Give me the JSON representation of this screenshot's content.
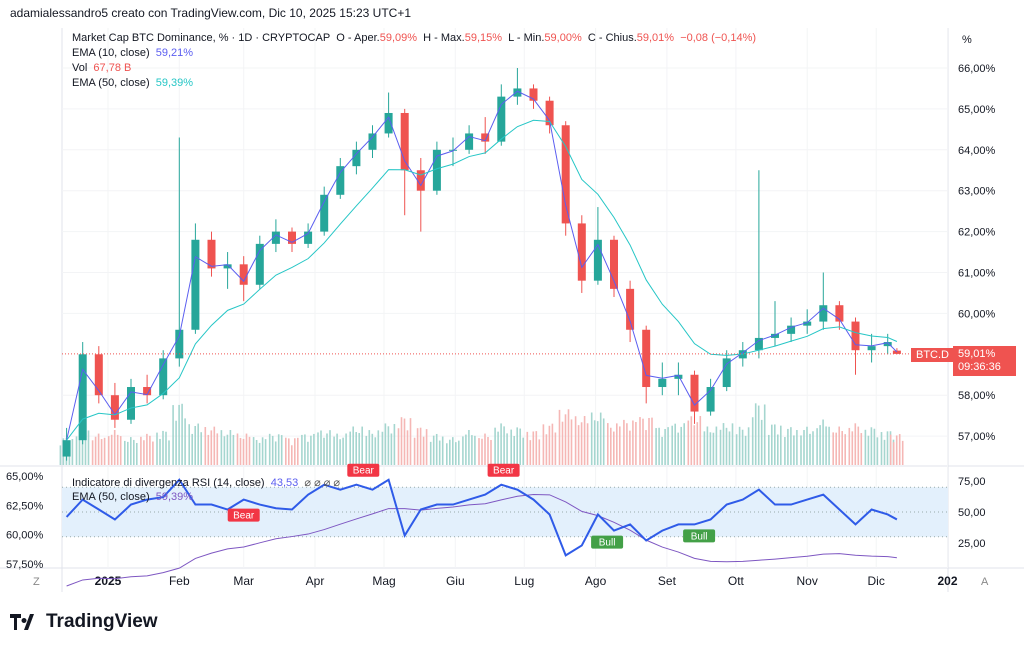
{
  "header": {
    "credit": "adamialessandro5 creato con TradingView.com, Dic 10, 2025 15:23 UTC+1"
  },
  "legend": {
    "symbol": "Market Cap BTC Dominance, % · 1D · CRYPTOCAP",
    "o_label": "O - Aper.",
    "o": "59,09%",
    "h_label": "H - Max.",
    "h": "59,15%",
    "l_label": "L - Min.",
    "l": "59,00%",
    "c_label": "C - Chius.",
    "c": "59,01%",
    "chg": "−0,08 (−0,14%)",
    "ema10_label": "EMA (10, close)",
    "ema10": "59,21%",
    "vol_label": "Vol",
    "vol": "67,78 B",
    "ema50_label": "EMA (50, close)",
    "ema50": "59,39%",
    "rsi_label": "Indicatore di divergenza RSI (14, close)",
    "rsi": "43,53",
    "rsi_icons": "⌀ ⌀ ⌀ ⌀",
    "rsi_ema_label": "EMA (50, close)",
    "rsi_ema": "59,39%"
  },
  "price_tag": {
    "symbol": "BTC.D",
    "price": "59,01%",
    "countdown": "09:36:36"
  },
  "unit": "%",
  "corner_left": "Z",
  "corner_right": "A",
  "logo": "TradingView",
  "colors": {
    "up": "#26a69a",
    "down": "#ef5350",
    "ema10": "#5b5ef0",
    "ema50": "#26c6c6",
    "rsi": "#2f5be8",
    "rsi_ema": "#7e57c2",
    "band": "#e3f0fc"
  },
  "chart_data": {
    "type": "candlestick",
    "price_axis": {
      "ticks": [
        "66,00%",
        "65,00%",
        "64,00%",
        "63,00%",
        "62,00%",
        "61,00%",
        "60,00%",
        "58,00%",
        "57,00%"
      ],
      "values": [
        66,
        65,
        64,
        63,
        62,
        61,
        60,
        58,
        57
      ],
      "range": [
        56.7,
        66.3
      ]
    },
    "time_axis": {
      "ticks": [
        "2025",
        "Feb",
        "Mar",
        "Apr",
        "Mag",
        "Giu",
        "Lug",
        "Ago",
        "Set",
        "Ott",
        "Nov",
        "Dic",
        "202"
      ],
      "dates": [
        "2025-01-01",
        "2025-02-01",
        "2025-03-01",
        "2025-04-01",
        "2025-05-01",
        "2025-06-01",
        "2025-07-01",
        "2025-08-01",
        "2025-09-01",
        "2025-10-01",
        "2025-11-01",
        "2025-12-01",
        "2026-01-01"
      ]
    },
    "candles_weekly_approx": [
      [
        "2024-12-14",
        56.5,
        57.2,
        56.4,
        56.9
      ],
      [
        "2024-12-21",
        56.9,
        59.3,
        56.8,
        59.0
      ],
      [
        "2024-12-28",
        59.0,
        59.2,
        57.8,
        58.0
      ],
      [
        "2025-01-04",
        58.0,
        58.3,
        57.2,
        57.4
      ],
      [
        "2025-01-11",
        57.4,
        58.4,
        57.3,
        58.2
      ],
      [
        "2025-01-18",
        58.2,
        58.5,
        57.8,
        58.0
      ],
      [
        "2025-01-25",
        58.0,
        59.1,
        57.9,
        58.9
      ],
      [
        "2025-02-01",
        58.9,
        64.3,
        58.7,
        59.6
      ],
      [
        "2025-02-08",
        59.6,
        62.2,
        59.5,
        61.8
      ],
      [
        "2025-02-15",
        61.8,
        62.0,
        60.9,
        61.1
      ],
      [
        "2025-02-22",
        61.1,
        61.5,
        60.6,
        61.2
      ],
      [
        "2025-03-01",
        61.2,
        61.4,
        60.3,
        60.7
      ],
      [
        "2025-03-08",
        60.7,
        61.9,
        60.6,
        61.7
      ],
      [
        "2025-03-15",
        61.7,
        62.3,
        61.5,
        62.0
      ],
      [
        "2025-03-22",
        62.0,
        62.1,
        61.5,
        61.7
      ],
      [
        "2025-03-29",
        61.7,
        62.2,
        61.6,
        62.0
      ],
      [
        "2025-04-05",
        62.0,
        63.1,
        61.9,
        62.9
      ],
      [
        "2025-04-12",
        62.9,
        63.8,
        62.8,
        63.6
      ],
      [
        "2025-04-19",
        63.6,
        64.2,
        63.4,
        64.0
      ],
      [
        "2025-04-26",
        64.0,
        64.6,
        63.8,
        64.4
      ],
      [
        "2025-05-03",
        64.4,
        65.4,
        64.3,
        64.9
      ],
      [
        "2025-05-10",
        64.9,
        65.0,
        62.4,
        63.5
      ],
      [
        "2025-05-17",
        63.5,
        63.8,
        62.0,
        63.0
      ],
      [
        "2025-05-24",
        63.0,
        64.2,
        62.9,
        64.0
      ],
      [
        "2025-05-31",
        64.0,
        64.3,
        63.6,
        64.0
      ],
      [
        "2025-06-07",
        64.0,
        64.6,
        63.9,
        64.4
      ],
      [
        "2025-06-14",
        64.4,
        64.8,
        63.9,
        64.2
      ],
      [
        "2025-06-21",
        64.2,
        65.6,
        64.1,
        65.3
      ],
      [
        "2025-06-28",
        65.3,
        66.0,
        65.1,
        65.5
      ],
      [
        "2025-07-05",
        65.5,
        65.6,
        65.0,
        65.2
      ],
      [
        "2025-07-12",
        65.2,
        65.3,
        64.4,
        64.6
      ],
      [
        "2025-07-19",
        64.6,
        64.7,
        61.9,
        62.2
      ],
      [
        "2025-07-26",
        62.2,
        62.4,
        60.5,
        60.8
      ],
      [
        "2025-08-02",
        60.8,
        62.6,
        60.7,
        61.8
      ],
      [
        "2025-08-09",
        61.8,
        61.9,
        60.4,
        60.6
      ],
      [
        "2025-08-16",
        60.6,
        60.8,
        59.3,
        59.6
      ],
      [
        "2025-08-23",
        59.6,
        59.7,
        57.8,
        58.2
      ],
      [
        "2025-08-30",
        58.2,
        58.8,
        58.0,
        58.4
      ],
      [
        "2025-09-06",
        58.4,
        58.8,
        58.0,
        58.5
      ],
      [
        "2025-09-13",
        58.5,
        58.6,
        57.3,
        57.6
      ],
      [
        "2025-09-20",
        57.6,
        58.4,
        57.5,
        58.2
      ],
      [
        "2025-09-27",
        58.2,
        59.1,
        58.1,
        58.9
      ],
      [
        "2025-10-04",
        58.9,
        59.3,
        58.7,
        59.1
      ],
      [
        "2025-10-11",
        59.1,
        63.5,
        58.9,
        59.4
      ],
      [
        "2025-10-18",
        59.4,
        60.3,
        59.2,
        59.5
      ],
      [
        "2025-10-25",
        59.5,
        59.9,
        59.3,
        59.7
      ],
      [
        "2025-11-01",
        59.7,
        60.1,
        59.5,
        59.8
      ],
      [
        "2025-11-08",
        59.8,
        61.0,
        59.6,
        60.2
      ],
      [
        "2025-11-15",
        60.2,
        60.3,
        59.6,
        59.8
      ],
      [
        "2025-11-22",
        59.8,
        59.9,
        58.5,
        59.1
      ],
      [
        "2025-11-29",
        59.1,
        59.5,
        58.8,
        59.2
      ],
      [
        "2025-12-06",
        59.2,
        59.5,
        59.0,
        59.3
      ],
      [
        "2025-12-10",
        59.09,
        59.15,
        59.0,
        59.01
      ]
    ],
    "volume_relative_pct": [
      40,
      55,
      45,
      50,
      40,
      45,
      50,
      90,
      60,
      55,
      50,
      45,
      40,
      45,
      40,
      45,
      50,
      45,
      55,
      50,
      60,
      70,
      55,
      45,
      40,
      50,
      45,
      60,
      55,
      50,
      60,
      80,
      70,
      75,
      60,
      65,
      70,
      55,
      60,
      70,
      55,
      60,
      55,
      90,
      60,
      55,
      55,
      65,
      55,
      60,
      55,
      50,
      45
    ],
    "rsi_axis": {
      "ticks": [
        "75,00",
        "50,00",
        "25,00"
      ],
      "values": [
        75,
        50,
        25
      ]
    },
    "rsi_left_axis": {
      "ticks": [
        "65,00%",
        "62,50%",
        "60,00%",
        "57,50%"
      ],
      "values": [
        65,
        62.5,
        60,
        57.5
      ]
    },
    "rsi": [
      46,
      60,
      52,
      44,
      56,
      60,
      62,
      76,
      56,
      56,
      52,
      60,
      56,
      53,
      52,
      64,
      72,
      68,
      72,
      68,
      76,
      31,
      52,
      56,
      56,
      60,
      64,
      72,
      68,
      60,
      48,
      15,
      23,
      48,
      35,
      40,
      27,
      35,
      40,
      40,
      44,
      56,
      60,
      68,
      56,
      56,
      60,
      64,
      52,
      40,
      52,
      48,
      44
    ],
    "divergences": [
      {
        "label": "Bear",
        "date": "2025-03-01",
        "type": "bear"
      },
      {
        "label": "Bear",
        "date": "2025-04-22",
        "type": "bear"
      },
      {
        "label": "Bear",
        "date": "2025-06-22",
        "type": "bear"
      },
      {
        "label": "Bull",
        "date": "2025-08-06",
        "type": "bull"
      },
      {
        "label": "Bull",
        "date": "2025-09-15",
        "type": "bull"
      }
    ]
  }
}
